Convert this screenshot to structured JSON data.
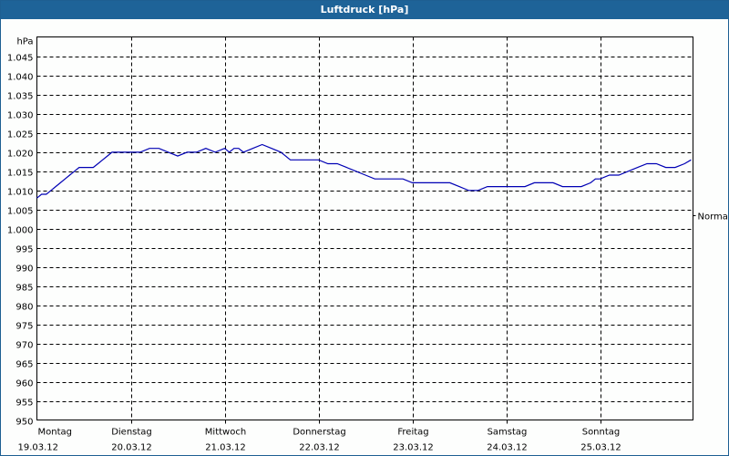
{
  "window": {
    "title": "Luftdruck [hPa]"
  },
  "chart_data": {
    "type": "line",
    "title": "Luftdruck [hPa]",
    "ylabel": "hPa",
    "ylim": [
      950,
      1045
    ],
    "yticks": [
      "1.045",
      "1.040",
      "1.035",
      "1.030",
      "1.025",
      "1.020",
      "1.015",
      "1.010",
      "1.005",
      "1.000",
      "995",
      "990",
      "985",
      "980",
      "975",
      "970",
      "965",
      "960",
      "955",
      "950"
    ],
    "ytick_values": [
      1045,
      1040,
      1035,
      1030,
      1025,
      1020,
      1015,
      1010,
      1005,
      1000,
      995,
      990,
      985,
      980,
      975,
      970,
      965,
      960,
      955,
      950
    ],
    "xticks": [
      {
        "day": "Montag",
        "date": "19.03.12"
      },
      {
        "day": "Dienstag",
        "date": "20.03.12"
      },
      {
        "day": "Mittwoch",
        "date": "21.03.12"
      },
      {
        "day": "Donnerstag",
        "date": "22.03.12"
      },
      {
        "day": "Freitag",
        "date": "23.03.12"
      },
      {
        "day": "Samstag",
        "date": "24.03.12"
      },
      {
        "day": "Sonntag",
        "date": "25.03.12"
      }
    ],
    "annotation": {
      "label": "Normal",
      "value": 1003.5
    },
    "grid": true,
    "series": [
      {
        "name": "Luftdruck",
        "color": "#0000b4",
        "x_days": [
          0,
          0.05,
          0.1,
          0.15,
          0.2,
          0.25,
          0.3,
          0.35,
          0.4,
          0.45,
          0.5,
          0.55,
          0.6,
          0.65,
          0.7,
          0.75,
          0.8,
          0.9,
          1.0,
          1.1,
          1.2,
          1.3,
          1.4,
          1.5,
          1.6,
          1.7,
          1.8,
          1.9,
          2.0,
          2.05,
          2.1,
          2.15,
          2.2,
          2.3,
          2.4,
          2.5,
          2.6,
          2.7,
          2.8,
          2.9,
          3.0,
          3.1,
          3.2,
          3.3,
          3.4,
          3.5,
          3.6,
          3.7,
          3.8,
          3.9,
          4.0,
          4.1,
          4.2,
          4.3,
          4.4,
          4.5,
          4.6,
          4.7,
          4.8,
          4.9,
          5.0,
          5.1,
          5.2,
          5.3,
          5.4,
          5.5,
          5.6,
          5.7,
          5.8,
          5.9,
          5.95,
          6.0,
          6.1,
          6.2,
          6.3,
          6.4,
          6.5,
          6.6,
          6.7,
          6.8,
          6.9,
          6.97
        ],
        "values": [
          1008,
          1009,
          1009,
          1010,
          1011,
          1012,
          1013,
          1014,
          1015,
          1016,
          1016,
          1016,
          1016,
          1017,
          1018,
          1019,
          1020,
          1020,
          1020,
          1020,
          1021,
          1021,
          1020,
          1019,
          1020,
          1020,
          1021,
          1020,
          1021,
          1020,
          1021,
          1021,
          1020,
          1021,
          1022,
          1021,
          1020,
          1018,
          1018,
          1018,
          1018,
          1017,
          1017,
          1016,
          1015,
          1014,
          1013,
          1013,
          1013,
          1013,
          1012,
          1012,
          1012,
          1012,
          1012,
          1011,
          1010,
          1010,
          1011,
          1011,
          1011,
          1011,
          1011,
          1012,
          1012,
          1012,
          1011,
          1011,
          1011,
          1012,
          1013,
          1013,
          1014,
          1014,
          1015,
          1016,
          1017,
          1017,
          1016,
          1016,
          1017,
          1018
        ]
      }
    ]
  }
}
